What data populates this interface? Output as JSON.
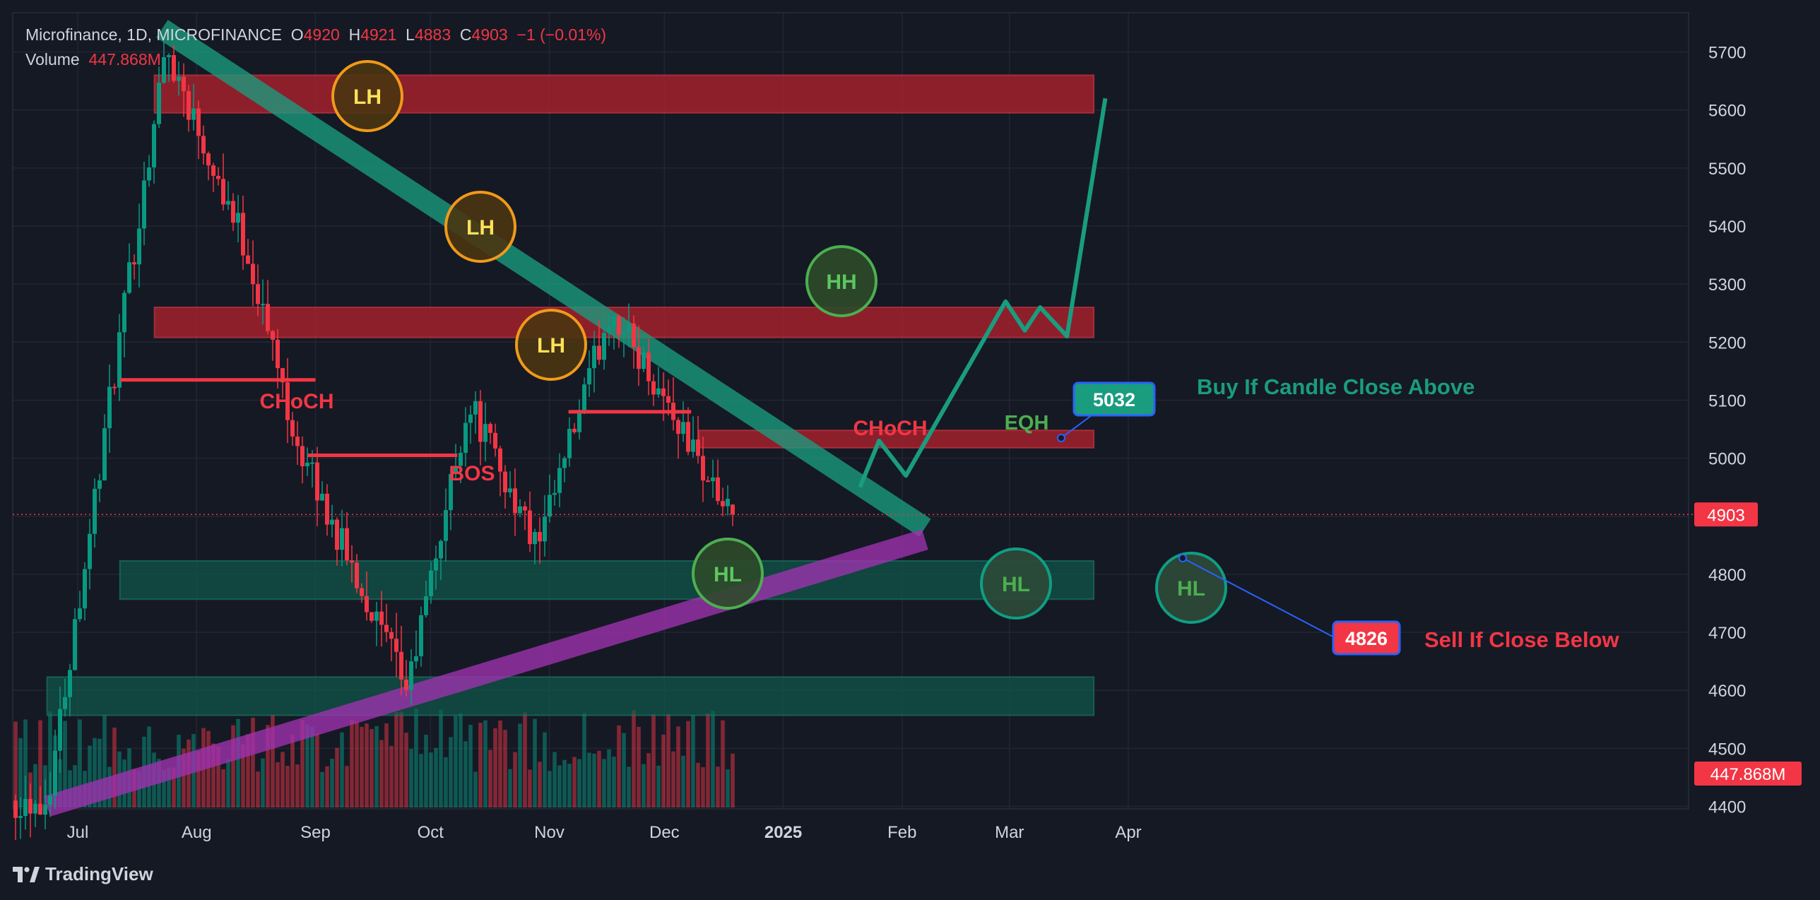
{
  "header": {
    "symbol_line": "Microfinance, 1D, MICROFINANCE",
    "o_label": "O",
    "o_value": "4920",
    "h_label": "H",
    "h_value": "4921",
    "l_label": "L",
    "l_value": "4883",
    "c_label": "C",
    "c_value": "4903",
    "change": "−1 (−0.01%)",
    "volume_label": "Volume",
    "volume_value": "447.868M"
  },
  "branding": {
    "logo_text": "TradingView",
    "logo_icon": "tradingview-logo-icon"
  },
  "colors": {
    "background": "#151924",
    "grid": "#222633",
    "up": "#089981",
    "down": "#f23645",
    "text": "#d1d4dc",
    "teal_line": "#1a9c7f",
    "purple_line": "#a032b0",
    "supply_zone": "#b5222e",
    "demand_zone": "#0f5e4f",
    "circle_orange": "#f09a1a",
    "circle_green": "#4caf50",
    "circle_teal": "#0f9e83"
  },
  "chart_data": {
    "type": "candlestick",
    "instrument": "Microfinance",
    "timeframe": "1D",
    "x_tick_labels": [
      "Jul",
      "Aug",
      "Sep",
      "Oct",
      "Nov",
      "Dec",
      "2025",
      "Feb",
      "Mar",
      "Apr"
    ],
    "y_tick_labels": [
      4400,
      4500,
      4600,
      4700,
      4800,
      4900,
      5000,
      5100,
      5200,
      5300,
      5400,
      5500,
      5600,
      5700
    ],
    "ylim": [
      4380,
      5760
    ],
    "grid": true,
    "last_price": 4903,
    "last_volume": "447.868M",
    "last_ohlc": {
      "open": 4920,
      "high": 4921,
      "low": 4883,
      "close": 4903
    },
    "key_points": [
      {
        "date": "2024-06-23",
        "price": 4410
      },
      {
        "date": "2024-07-24",
        "price": 5710
      },
      {
        "date": "2024-08-14",
        "price": 5360
      },
      {
        "date": "2024-08-28",
        "price": 5010
      },
      {
        "date": "2024-09-25",
        "price": 4600
      },
      {
        "date": "2024-10-11",
        "price": 5100
      },
      {
        "date": "2024-10-29",
        "price": 4840
      },
      {
        "date": "2024-11-17",
        "price": 5260
      },
      {
        "date": "2024-12-03",
        "price": 5080
      },
      {
        "date": "2024-12-21",
        "price": 4860
      },
      {
        "date": "2024-12-31",
        "price": 5030
      },
      {
        "date": "2025-01-17",
        "price": 4830
      },
      {
        "date": "2025-01-21",
        "price": 4903
      }
    ],
    "zones": [
      {
        "kind": "supply",
        "from": 5595,
        "to": 5660,
        "start": "2024-07-21",
        "end": "2025-03-23"
      },
      {
        "kind": "supply",
        "from": 5208,
        "to": 5260,
        "start": "2024-07-21",
        "end": "2025-03-23"
      },
      {
        "kind": "supply",
        "from": 5018,
        "to": 5048,
        "start": "2024-12-10",
        "end": "2025-03-23"
      },
      {
        "kind": "demand",
        "from": 4757,
        "to": 4823,
        "start": "2024-07-12",
        "end": "2025-03-23"
      },
      {
        "kind": "demand",
        "from": 4557,
        "to": 4623,
        "start": "2024-06-23",
        "end": "2025-03-23"
      }
    ],
    "trendlines": [
      {
        "name": "descending resistance",
        "start": {
          "date": "2024-07-23",
          "price": 5740
        },
        "end": {
          "date": "2025-02-07",
          "price": 4880
        }
      },
      {
        "name": "ascending support",
        "start": {
          "date": "2024-06-23",
          "price": 4400
        },
        "end": {
          "date": "2025-02-07",
          "price": 4860
        }
      }
    ],
    "structure_labels": [
      {
        "text": "CHoCH",
        "level": 5135
      },
      {
        "text": "BOS",
        "level": 5005
      },
      {
        "text": "CHoCH",
        "level": 5080
      }
    ],
    "swing_labels": [
      {
        "text": "LH",
        "price": 5625
      },
      {
        "text": "LH",
        "price": 5395
      },
      {
        "text": "LH",
        "price": 5195
      },
      {
        "text": "HH",
        "price": 5300
      },
      {
        "text": "HL",
        "price": 4800
      },
      {
        "text": "HL",
        "price": 4780
      },
      {
        "text": "HL",
        "price": 4775
      }
    ],
    "eqh_label": "EQH",
    "price_markers": [
      {
        "text": "5032",
        "value": 5032
      },
      {
        "text": "4826",
        "value": 4826
      }
    ],
    "annotations": [
      "Buy If Candle Close Above",
      "Sell If Close Below"
    ],
    "projected_path": [
      {
        "date": "2025-01-21",
        "price": 4950
      },
      {
        "date": "2025-01-26",
        "price": 5030
      },
      {
        "date": "2025-02-02",
        "price": 4970
      },
      {
        "date": "2025-02-28",
        "price": 5270
      },
      {
        "date": "2025-03-05",
        "price": 5220
      },
      {
        "date": "2025-03-09",
        "price": 5260
      },
      {
        "date": "2025-03-16",
        "price": 5210
      },
      {
        "date": "2025-03-26",
        "price": 5620
      }
    ]
  }
}
